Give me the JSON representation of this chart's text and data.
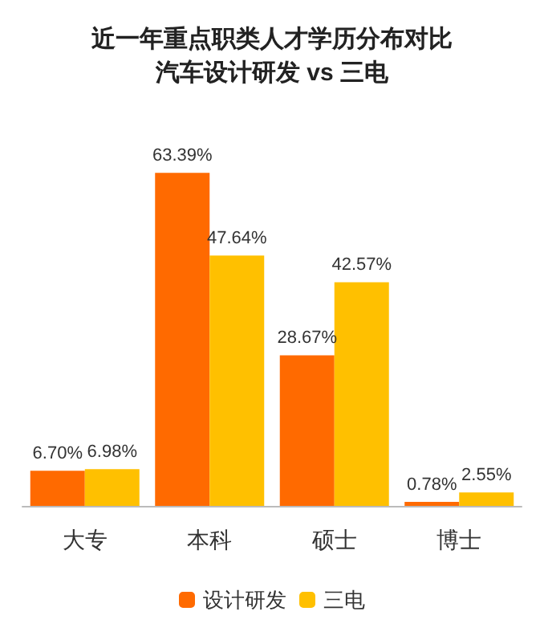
{
  "chart_data": {
    "type": "bar",
    "title": "近一年重点职类人才学历分布对比",
    "subtitle": "汽车设计研发 vs 三电",
    "categories": [
      "大专",
      "本科",
      "硕士",
      "博士"
    ],
    "series": [
      {
        "name": "设计研发",
        "color": "#ff6a00",
        "values": [
          6.7,
          63.39,
          28.67,
          0.78
        ],
        "value_labels": [
          "6.70%",
          "63.39%",
          "28.67%",
          "0.78%"
        ]
      },
      {
        "name": "三电",
        "color": "#ffc000",
        "values": [
          6.98,
          47.64,
          42.57,
          2.55
        ],
        "value_labels": [
          "6.98%",
          "47.64%",
          "42.57%",
          "2.55%"
        ]
      }
    ],
    "legend": "bottom",
    "tick_labels": "x"
  }
}
